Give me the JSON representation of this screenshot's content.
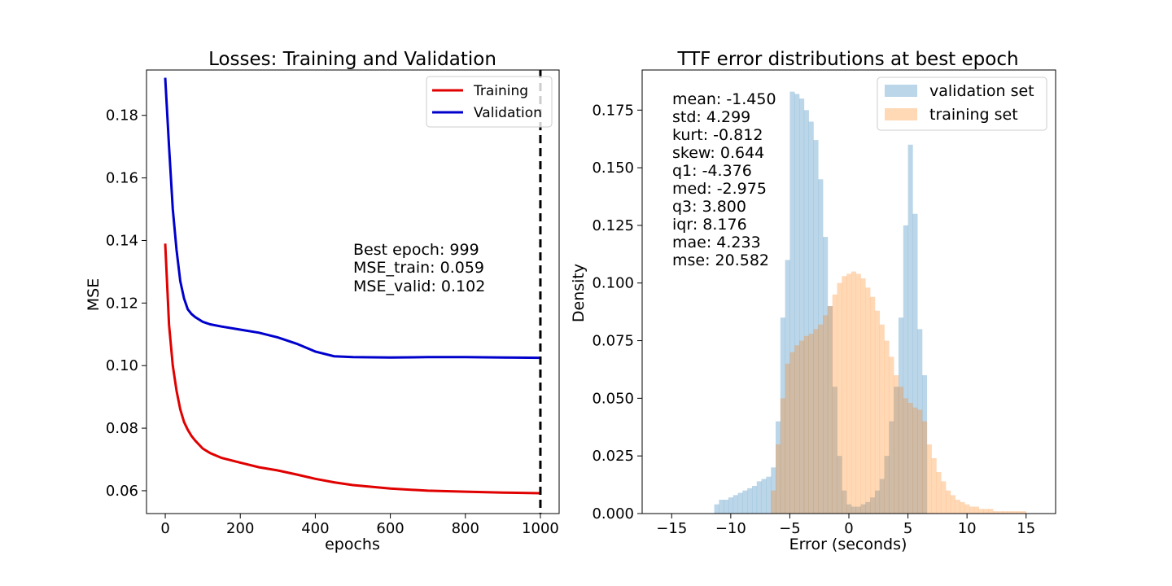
{
  "chart_data": [
    {
      "type": "line",
      "title": "Losses: Training and Validation",
      "xlabel": "epochs",
      "ylabel": "MSE",
      "xlim": [
        -50,
        1050
      ],
      "ylim": [
        0.0527,
        0.1945
      ],
      "xticks": [
        0,
        200,
        400,
        600,
        800,
        1000
      ],
      "xtick_labels": [
        "0",
        "200",
        "400",
        "600",
        "800",
        "1000"
      ],
      "yticks": [
        0.06,
        0.08,
        0.1,
        0.12,
        0.14,
        0.16,
        0.18
      ],
      "ytick_labels": [
        "0.06",
        "0.08",
        "0.10",
        "0.12",
        "0.14",
        "0.16",
        "0.18"
      ],
      "grid": false,
      "legend_position": "top-right",
      "series": [
        {
          "name": "Training",
          "color": "#e00000",
          "x": [
            0,
            10,
            20,
            30,
            40,
            50,
            60,
            70,
            80,
            100,
            120,
            150,
            200,
            250,
            300,
            350,
            400,
            450,
            500,
            600,
            700,
            800,
            900,
            1000
          ],
          "y": [
            0.139,
            0.113,
            0.1,
            0.092,
            0.086,
            0.082,
            0.0795,
            0.0775,
            0.076,
            0.0735,
            0.072,
            0.0705,
            0.069,
            0.0675,
            0.0665,
            0.0652,
            0.0638,
            0.0627,
            0.0618,
            0.0607,
            0.06,
            0.0597,
            0.0594,
            0.0592
          ]
        },
        {
          "name": "Validation",
          "color": "#0000cc",
          "x": [
            0,
            10,
            20,
            30,
            40,
            50,
            60,
            70,
            80,
            100,
            120,
            150,
            200,
            250,
            300,
            350,
            400,
            450,
            500,
            600,
            700,
            800,
            900,
            1000
          ],
          "y": [
            0.192,
            0.17,
            0.15,
            0.137,
            0.127,
            0.1215,
            0.118,
            0.1165,
            0.1155,
            0.114,
            0.1132,
            0.1125,
            0.1115,
            0.1105,
            0.109,
            0.107,
            0.1045,
            0.103,
            0.1027,
            0.1026,
            0.1027,
            0.1027,
            0.1026,
            0.1025
          ]
        }
      ],
      "vline": {
        "x": 1000,
        "style": "dashed",
        "color": "#000000"
      },
      "annotation": [
        "Best epoch: 999",
        "MSE_train: 0.059",
        "MSE_valid: 0.102"
      ]
    },
    {
      "type": "histogram",
      "title": "TTF error distributions at best epoch",
      "xlabel": "Error (seconds)",
      "ylabel": "Density",
      "xlim": [
        -17.5,
        17.5
      ],
      "ylim": [
        0.0,
        0.1924
      ],
      "xticks": [
        -15,
        -10,
        -5,
        0,
        5,
        10,
        15
      ],
      "xtick_labels": [
        "−15",
        "−10",
        "−5",
        "0",
        "5",
        "10",
        "15"
      ],
      "yticks": [
        0.0,
        0.025,
        0.05,
        0.075,
        0.1,
        0.125,
        0.15,
        0.175
      ],
      "ytick_labels": [
        "0.000",
        "0.025",
        "0.050",
        "0.075",
        "0.100",
        "0.125",
        "0.150",
        "0.175"
      ],
      "grid": false,
      "legend_position": "top-right",
      "series": [
        {
          "name": "validation set",
          "color": "#1f77b4",
          "alpha": 0.3,
          "bin_edges": [
            -11.4,
            -11.0,
            -10.6,
            -10.2,
            -9.8,
            -9.4,
            -9.0,
            -8.6,
            -8.2,
            -7.8,
            -7.4,
            -7.0,
            -6.6,
            -6.2,
            -5.8,
            -5.4,
            -5.0,
            -4.6,
            -4.2,
            -3.8,
            -3.4,
            -3.0,
            -2.6,
            -2.2,
            -1.8,
            -1.4,
            -1.0,
            -0.6,
            -0.2,
            0.2,
            0.6,
            1.0,
            1.4,
            1.8,
            2.2,
            2.6,
            3.0,
            3.4,
            3.8,
            4.2,
            4.6,
            5.0,
            5.4,
            5.8,
            6.2,
            6.6
          ],
          "values": [
            0.004,
            0.006,
            0.006,
            0.007,
            0.008,
            0.009,
            0.01,
            0.011,
            0.012,
            0.014,
            0.015,
            0.016,
            0.02,
            0.04,
            0.085,
            0.11,
            0.183,
            0.182,
            0.18,
            0.175,
            0.17,
            0.162,
            0.145,
            0.12,
            0.09,
            0.055,
            0.025,
            0.01,
            0.004,
            0.003,
            0.003,
            0.004,
            0.005,
            0.007,
            0.01,
            0.015,
            0.025,
            0.04,
            0.055,
            0.085,
            0.125,
            0.16,
            0.13,
            0.08,
            0.06
          ]
        },
        {
          "name": "training set",
          "color": "#ff7f0e",
          "alpha": 0.3,
          "bin_edges": [
            -6.6,
            -6.2,
            -5.8,
            -5.4,
            -5.0,
            -4.6,
            -4.2,
            -3.8,
            -3.4,
            -3.0,
            -2.6,
            -2.2,
            -1.8,
            -1.4,
            -1.0,
            -0.6,
            -0.2,
            0.2,
            0.6,
            1.0,
            1.4,
            1.8,
            2.2,
            2.6,
            3.0,
            3.4,
            3.8,
            4.2,
            4.6,
            5.0,
            5.4,
            5.8,
            6.2,
            6.6,
            7.0,
            7.4,
            7.8,
            8.2,
            8.6,
            9.0,
            9.4,
            9.8,
            10.2,
            10.6,
            11.0,
            11.4,
            11.8,
            12.2,
            12.6,
            13.0,
            13.4,
            13.8,
            14.2,
            14.6,
            15.0
          ],
          "values": [
            0.01,
            0.03,
            0.05,
            0.065,
            0.07,
            0.073,
            0.075,
            0.077,
            0.078,
            0.08,
            0.082,
            0.086,
            0.09,
            0.095,
            0.1,
            0.103,
            0.104,
            0.105,
            0.104,
            0.102,
            0.098,
            0.094,
            0.088,
            0.082,
            0.075,
            0.068,
            0.06,
            0.055,
            0.05,
            0.048,
            0.046,
            0.045,
            0.04,
            0.03,
            0.024,
            0.018,
            0.014,
            0.01,
            0.008,
            0.006,
            0.005,
            0.004,
            0.003,
            0.003,
            0.002,
            0.002,
            0.002,
            0.001,
            0.001,
            0.001,
            0.001,
            0.001,
            0.001,
            0.001
          ]
        }
      ],
      "annotation": [
        "mean: -1.450",
        "std: 4.299",
        "kurt: -0.812",
        "skew: 0.644",
        "q1: -4.376",
        "med: -2.975",
        "q3: 3.800",
        "iqr: 8.176",
        "mae: 4.233",
        "mse: 20.582"
      ]
    }
  ]
}
